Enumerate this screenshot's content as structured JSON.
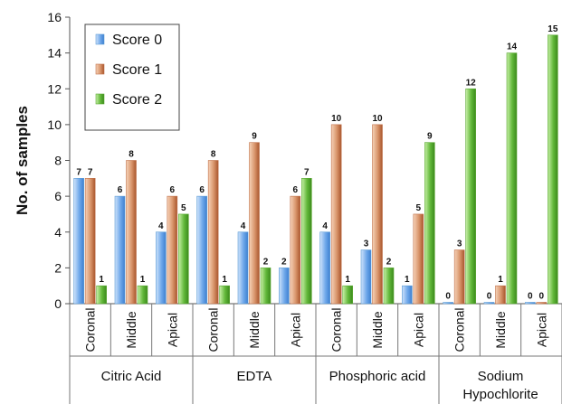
{
  "chart_data": {
    "type": "bar",
    "ylabel": "No. of samples",
    "ylim": [
      0,
      16
    ],
    "yticks": [
      0,
      2,
      4,
      6,
      8,
      10,
      12,
      14,
      16
    ],
    "grid": false,
    "legend_position": "top-left",
    "groups": [
      {
        "name": "Citric Acid",
        "categories": [
          "Coronal",
          "Middle",
          "Apical"
        ]
      },
      {
        "name": "EDTA",
        "categories": [
          "Coronal",
          "Middle",
          "Apical"
        ]
      },
      {
        "name": "Phosphoric acid",
        "categories": [
          "Coronal",
          "Middle",
          "Apical"
        ]
      },
      {
        "name": "Sodium Hypochlorite",
        "categories": [
          "Coronal",
          "Middle",
          "Apical"
        ]
      }
    ],
    "series": [
      {
        "name": "Score 0",
        "color": "#5b9bd5",
        "values": [
          7,
          6,
          4,
          6,
          4,
          2,
          4,
          3,
          1,
          0,
          0,
          0
        ]
      },
      {
        "name": "Score 1",
        "color": "#c0714a",
        "values": [
          7,
          8,
          6,
          8,
          9,
          6,
          10,
          10,
          5,
          3,
          1,
          0
        ]
      },
      {
        "name": "Score 2",
        "color": "#5aa832",
        "values": [
          1,
          1,
          5,
          1,
          2,
          7,
          1,
          2,
          9,
          12,
          14,
          15
        ]
      }
    ]
  }
}
